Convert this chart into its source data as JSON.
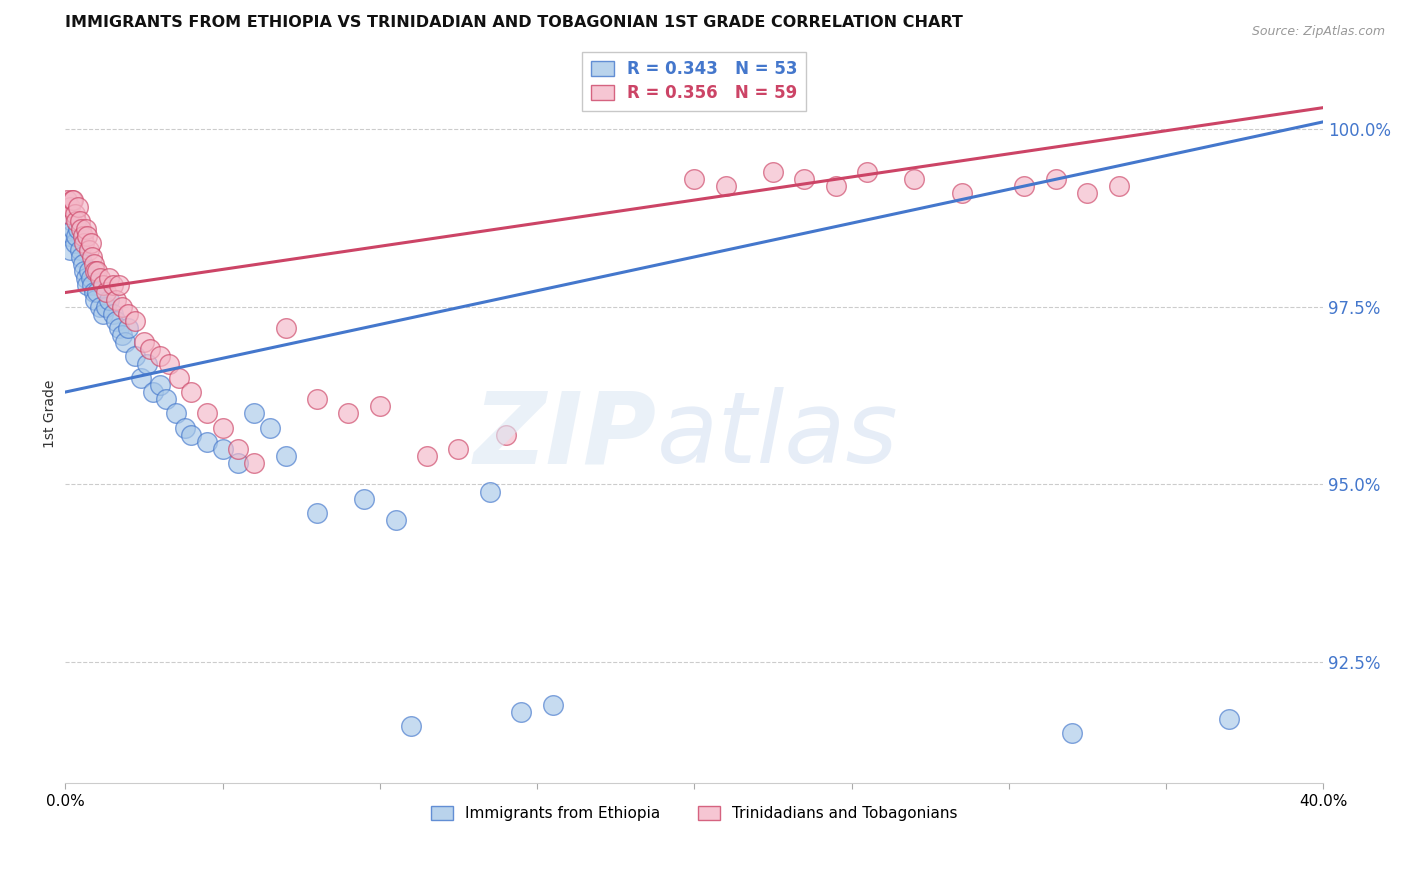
{
  "title": "IMMIGRANTS FROM ETHIOPIA VS TRINIDADIAN AND TOBAGONIAN 1ST GRADE CORRELATION CHART",
  "source": "Source: ZipAtlas.com",
  "ylabel": "1st Grade",
  "label_blue": "Immigrants from Ethiopia",
  "label_pink": "Trinidadians and Tobagonians",
  "legend_blue_r": "0.343",
  "legend_blue_n": "53",
  "legend_pink_r": "0.356",
  "legend_pink_n": "59",
  "xlim": [
    0.0,
    40.0
  ],
  "ylim": [
    90.8,
    101.2
  ],
  "yticks": [
    92.5,
    95.0,
    97.5,
    100.0
  ],
  "blue_color": "#a8c8e8",
  "pink_color": "#f4b8c8",
  "line_blue_color": "#4477cc",
  "line_pink_color": "#cc4466",
  "blue_scatter_x": [
    0.1,
    0.15,
    0.2,
    0.25,
    0.3,
    0.35,
    0.4,
    0.45,
    0.5,
    0.55,
    0.6,
    0.65,
    0.7,
    0.75,
    0.8,
    0.85,
    0.9,
    0.95,
    1.0,
    1.1,
    1.2,
    1.3,
    1.4,
    1.5,
    1.6,
    1.7,
    1.8,
    1.9,
    2.0,
    2.2,
    2.4,
    2.6,
    2.8,
    3.0,
    3.2,
    3.5,
    3.8,
    4.0,
    4.5,
    5.0,
    5.5,
    6.0,
    6.5,
    7.0,
    8.0,
    9.5,
    10.5,
    11.0,
    13.5,
    14.5,
    15.5,
    32.0,
    37.0
  ],
  "blue_scatter_y": [
    98.5,
    98.3,
    98.7,
    98.6,
    98.4,
    98.5,
    98.6,
    98.3,
    98.2,
    98.1,
    98.0,
    97.9,
    97.8,
    98.0,
    97.9,
    97.8,
    97.7,
    97.6,
    97.7,
    97.5,
    97.4,
    97.5,
    97.6,
    97.4,
    97.3,
    97.2,
    97.1,
    97.0,
    97.2,
    96.8,
    96.5,
    96.7,
    96.3,
    96.4,
    96.2,
    96.0,
    95.8,
    95.7,
    95.6,
    95.5,
    95.3,
    96.0,
    95.8,
    95.4,
    94.6,
    94.8,
    94.5,
    91.6,
    94.9,
    91.8,
    91.9,
    91.5,
    91.7
  ],
  "pink_scatter_x": [
    0.05,
    0.1,
    0.15,
    0.2,
    0.25,
    0.3,
    0.35,
    0.4,
    0.45,
    0.5,
    0.55,
    0.6,
    0.65,
    0.7,
    0.75,
    0.8,
    0.85,
    0.9,
    0.95,
    1.0,
    1.1,
    1.2,
    1.3,
    1.4,
    1.5,
    1.6,
    1.7,
    1.8,
    2.0,
    2.2,
    2.5,
    2.7,
    3.0,
    3.3,
    3.6,
    4.0,
    4.5,
    5.0,
    5.5,
    6.0,
    7.0,
    8.0,
    9.0,
    10.0,
    11.5,
    12.5,
    14.0,
    20.0,
    21.0,
    22.5,
    23.5,
    24.5,
    25.5,
    27.0,
    28.5,
    30.5,
    31.5,
    32.5,
    33.5
  ],
  "pink_scatter_y": [
    99.0,
    98.8,
    98.9,
    99.0,
    99.0,
    98.8,
    98.7,
    98.9,
    98.7,
    98.6,
    98.5,
    98.4,
    98.6,
    98.5,
    98.3,
    98.4,
    98.2,
    98.1,
    98.0,
    98.0,
    97.9,
    97.8,
    97.7,
    97.9,
    97.8,
    97.6,
    97.8,
    97.5,
    97.4,
    97.3,
    97.0,
    96.9,
    96.8,
    96.7,
    96.5,
    96.3,
    96.0,
    95.8,
    95.5,
    95.3,
    97.2,
    96.2,
    96.0,
    96.1,
    95.4,
    95.5,
    95.7,
    99.3,
    99.2,
    99.4,
    99.3,
    99.2,
    99.4,
    99.3,
    99.1,
    99.2,
    99.3,
    99.1,
    99.2
  ],
  "blue_line_x0": 0.0,
  "blue_line_y0": 96.3,
  "blue_line_x1": 40.0,
  "blue_line_y1": 100.1,
  "pink_line_x0": 0.0,
  "pink_line_y0": 97.7,
  "pink_line_x1": 40.0,
  "pink_line_y1": 100.3
}
